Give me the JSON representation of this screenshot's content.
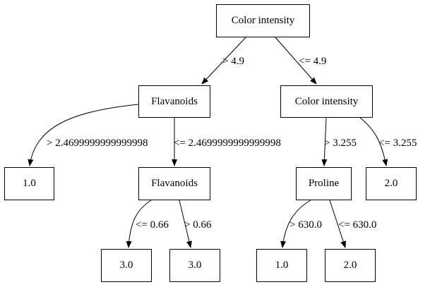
{
  "nodes": {
    "root": "Color intensity",
    "flav1": "Flavanoids",
    "ci2": "Color intensity",
    "leaf_1_0_a": "1.0",
    "flav2": "Flavanoids",
    "proline": "Proline",
    "leaf_2_0_a": "2.0",
    "leaf_3_0_a": "3.0",
    "leaf_3_0_b": "3.0",
    "leaf_1_0_b": "1.0",
    "leaf_2_0_b": "2.0"
  },
  "edges": {
    "root_flav1": "> 4.9",
    "root_ci2": "<= 4.9",
    "flav1_leaf": "> 2.4699999999999998",
    "flav1_flav2": "<= 2.4699999999999998",
    "ci2_proline": "> 3.255",
    "ci2_leaf": "<= 3.255",
    "flav2_leaf_a": "<= 0.66",
    "flav2_leaf_b": "> 0.66",
    "proline_leaf_a": "> 630.0",
    "proline_leaf_b": "<= 630.0"
  }
}
